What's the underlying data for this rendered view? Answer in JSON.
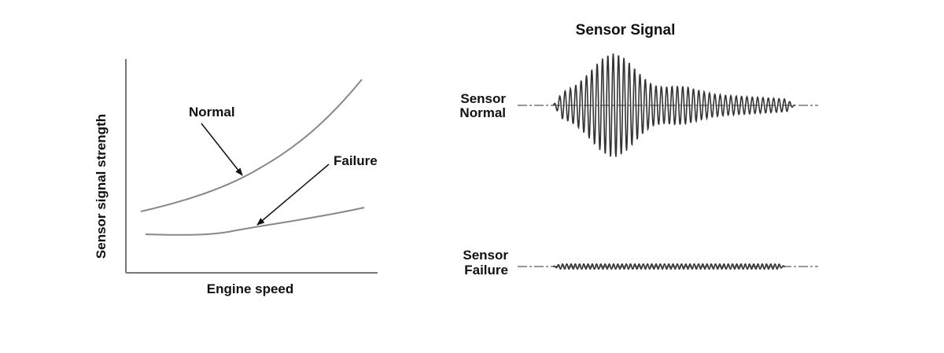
{
  "left_diagram": {
    "x_axis_label": "Engine speed",
    "y_axis_label": "Sensor signal strength",
    "curves": [
      {
        "label": "Normal"
      },
      {
        "label": "Failure"
      }
    ]
  },
  "right_diagram": {
    "title": "Sensor Signal",
    "signals": [
      {
        "label_line1": "Sensor",
        "label_line2": "Normal"
      },
      {
        "label_line1": "Sensor",
        "label_line2": "Failure"
      }
    ]
  },
  "colors": {
    "curve": "#777777",
    "wave": "#333333",
    "text": "#111111"
  }
}
